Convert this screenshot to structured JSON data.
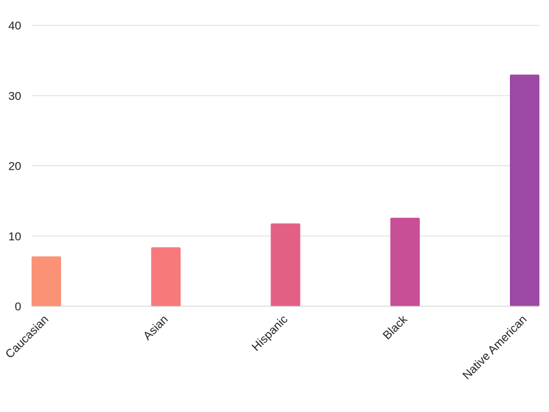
{
  "chart_data": {
    "type": "bar",
    "title": "",
    "xlabel": "",
    "ylabel": "",
    "categories": [
      "Caucasian",
      "Asian",
      "Hispanic",
      "Black",
      "Native American"
    ],
    "values": [
      7.1,
      8.4,
      11.8,
      12.6,
      33
    ],
    "colors": [
      "#fa9275",
      "#f7797b",
      "#e36085",
      "#c84f96",
      "#9d49a5"
    ],
    "ylim": [
      0,
      40
    ],
    "yticks": [
      0,
      10,
      20,
      30,
      40
    ],
    "grid": true,
    "legend": "none"
  }
}
